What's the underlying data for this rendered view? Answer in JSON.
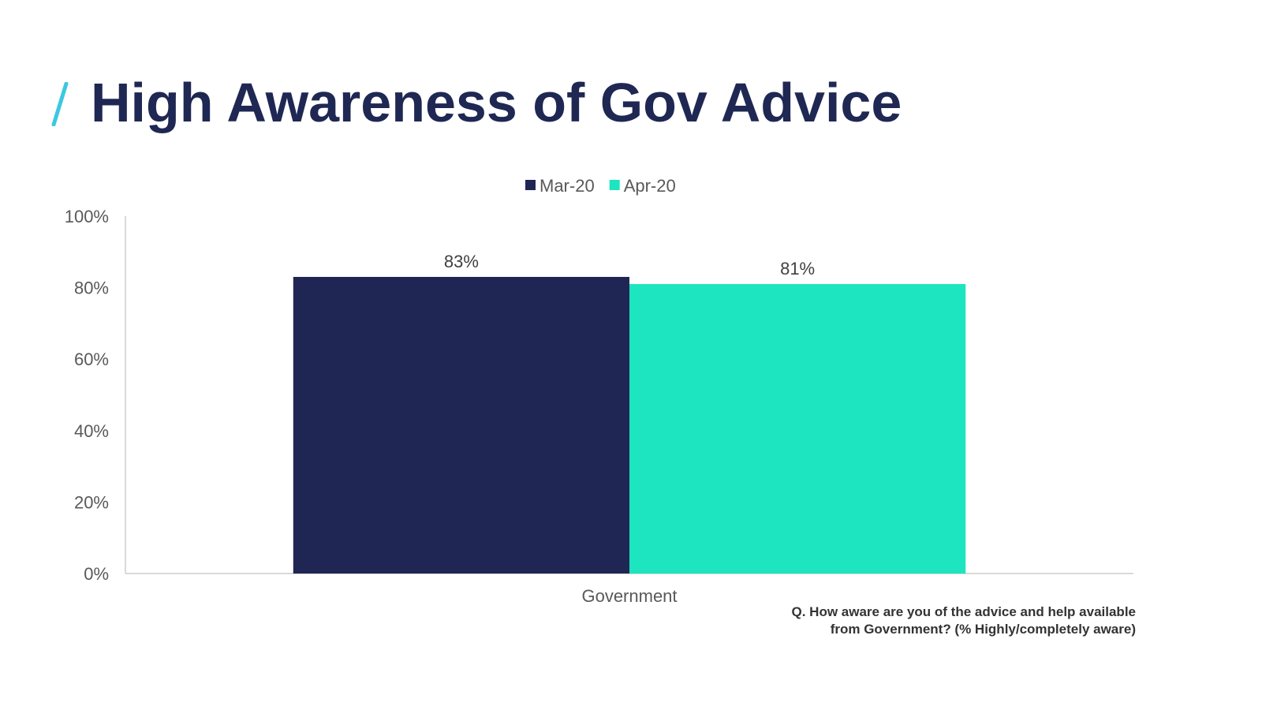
{
  "title": "High Awareness of Gov Advice",
  "footnote": {
    "line1": "Q. How aware are you of the advice and help available",
    "line2": "from Government? (% Highly/completely aware)"
  },
  "colors": {
    "accent": "#3cc8e0",
    "title": "#1f2753",
    "mar": "#202653",
    "apr": "#1ce5c0"
  },
  "chart_data": {
    "type": "bar",
    "categories": [
      "Government"
    ],
    "series": [
      {
        "name": "Mar-20",
        "values": [
          83
        ],
        "color": "#202653",
        "label": "83%"
      },
      {
        "name": "Apr-20",
        "values": [
          81
        ],
        "color": "#1ce5c0",
        "label": "81%"
      }
    ],
    "ylim": [
      0,
      100
    ],
    "yticks": [
      "0%",
      "20%",
      "40%",
      "60%",
      "80%",
      "100%"
    ],
    "legend_position": "top-center",
    "grid": false
  }
}
